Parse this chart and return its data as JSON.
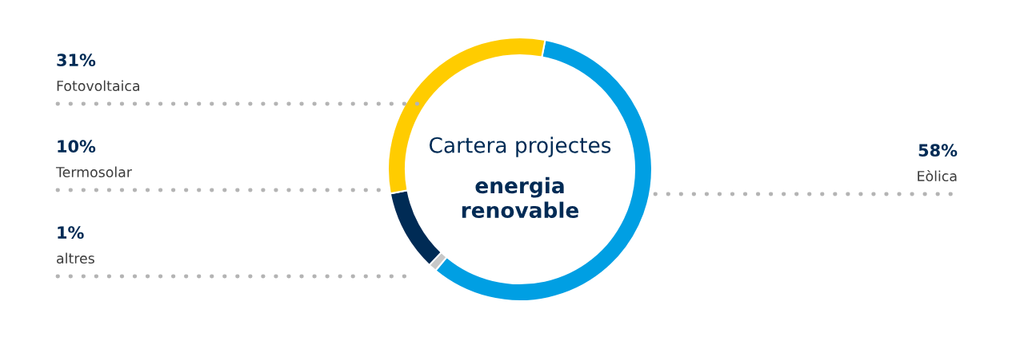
{
  "chart_data": {
    "type": "donut",
    "title": "Cartera projectes",
    "subtitle": "energia renovable",
    "categories": [
      "Eòlica",
      "altres",
      "Termosolar",
      "Fotovoltaica"
    ],
    "values": [
      58,
      1,
      10,
      31
    ],
    "colors": [
      "#009fe3",
      "#c8c8c8",
      "#002b55",
      "#ffcc00"
    ],
    "value_labels": [
      "58%",
      "1%",
      "10%",
      "31%"
    ]
  }
}
